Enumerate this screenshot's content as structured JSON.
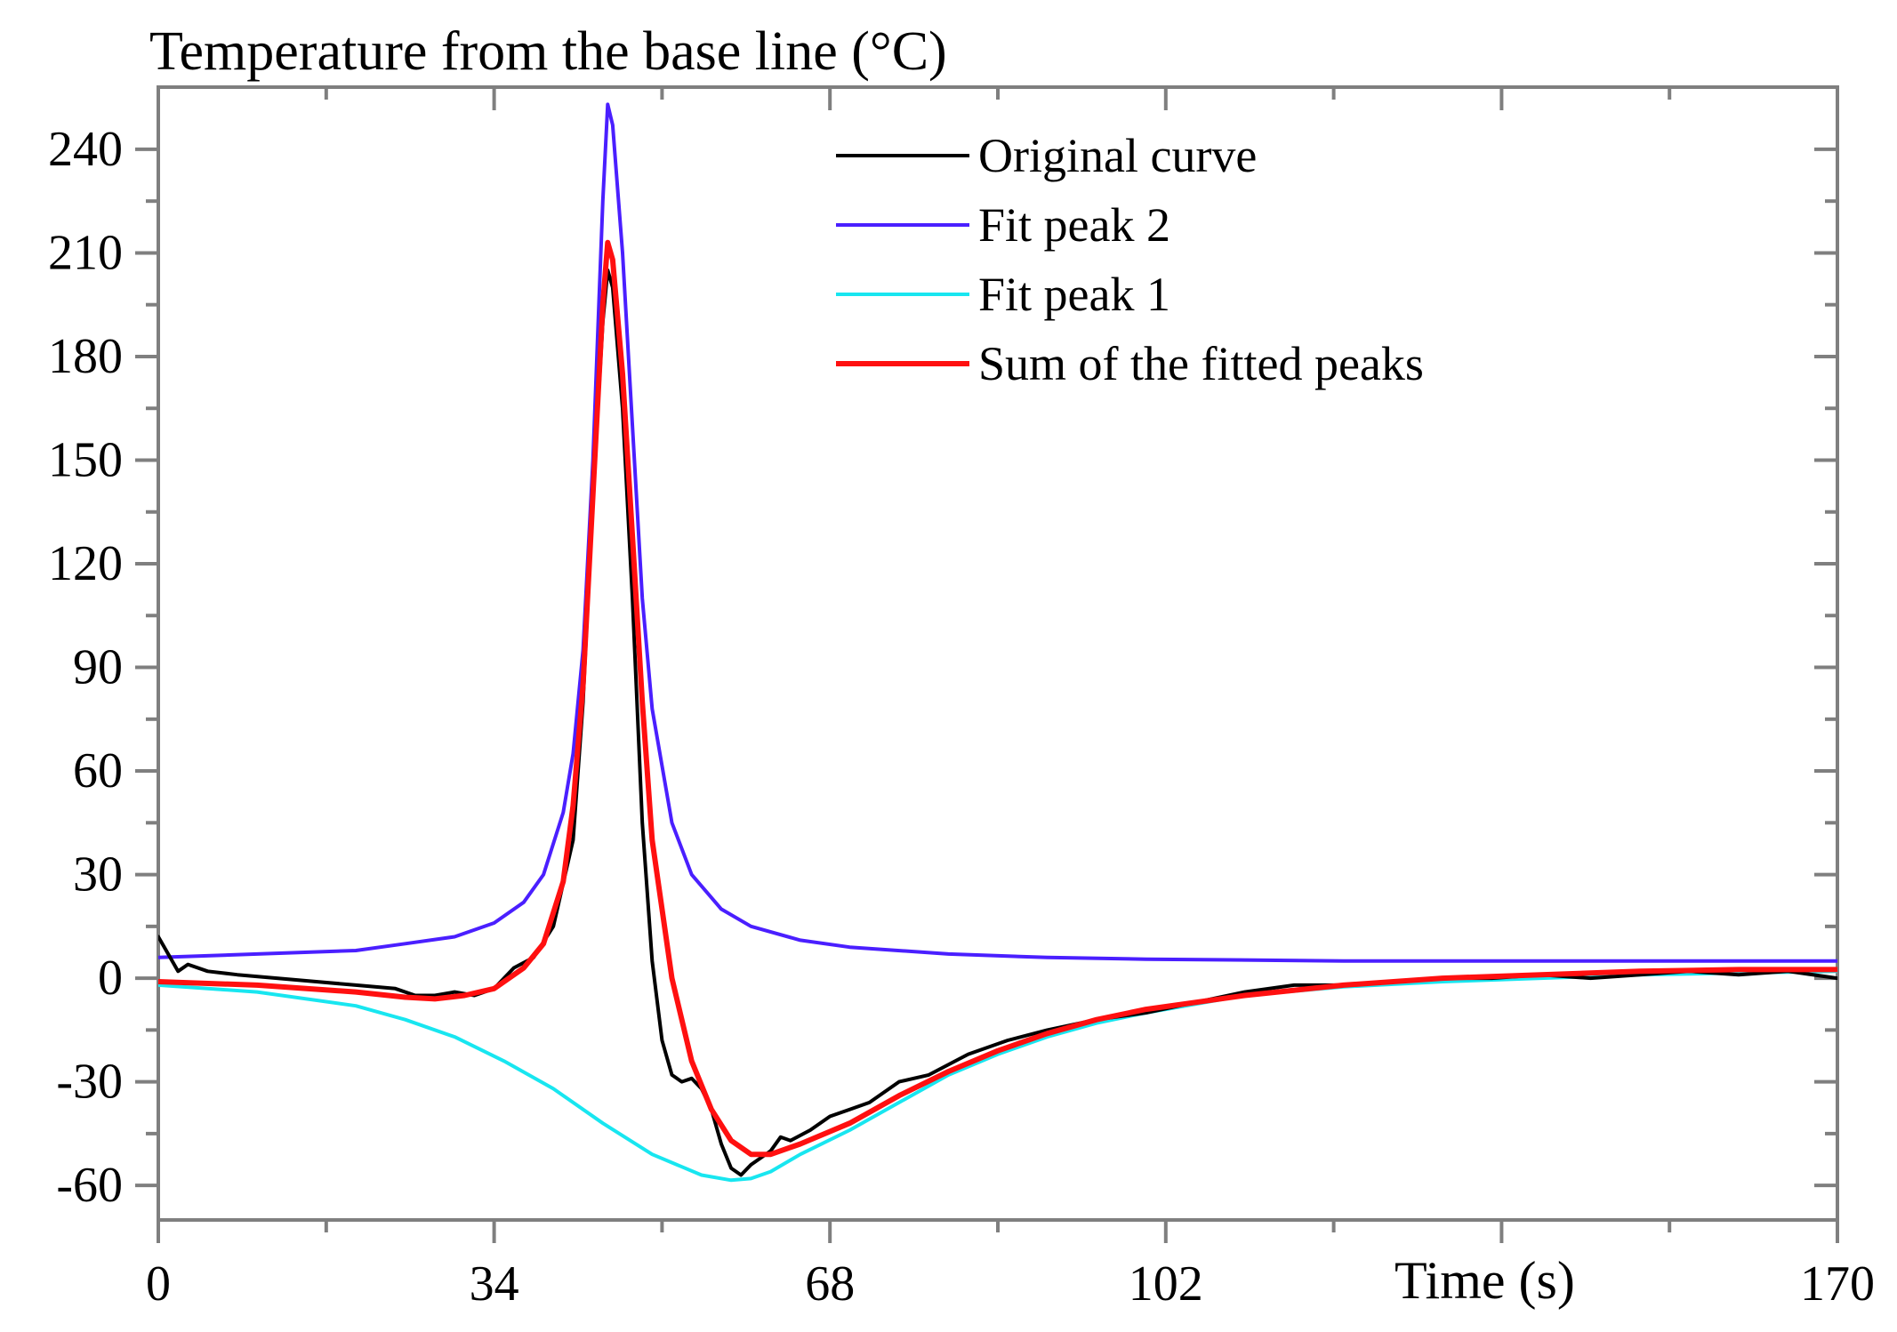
{
  "chart_data": {
    "type": "line",
    "title": "Temperature from the base line (°C)",
    "xlabel": "Time (s)",
    "ylabel": "",
    "xlim": [
      0,
      170
    ],
    "ylim": [
      -70,
      258
    ],
    "x_ticks": [
      0,
      34,
      68,
      102,
      170
    ],
    "x_tick_labels": [
      "0",
      "34",
      "68",
      "102",
      "170"
    ],
    "y_ticks": [
      240,
      210,
      180,
      150,
      120,
      90,
      60,
      30,
      0,
      -30,
      -60
    ],
    "y_tick_labels": [
      "240",
      "210",
      "180",
      "150",
      "120",
      "90",
      "60",
      "30",
      "0",
      "-30",
      "-60"
    ],
    "legend_position": "top-right",
    "series": [
      {
        "name": "Original curve",
        "color": "#000000",
        "x": [
          0,
          1,
          2,
          3,
          5,
          8,
          12,
          16,
          20,
          24,
          26,
          28,
          30,
          32,
          34,
          36,
          38,
          40,
          42,
          43,
          44,
          45,
          45.5,
          46,
          47,
          48,
          49,
          50,
          51,
          52,
          53,
          54,
          55,
          56,
          57,
          58,
          59,
          60,
          61,
          62,
          63,
          64,
          66,
          68,
          70,
          72,
          75,
          78,
          82,
          86,
          90,
          95,
          100,
          105,
          110,
          115,
          120,
          125,
          130,
          135,
          140,
          145,
          150,
          155,
          160,
          165,
          170
        ],
        "values": [
          12,
          7,
          2,
          4,
          2,
          1,
          0,
          -1,
          -2,
          -3,
          -5,
          -5,
          -4,
          -5,
          -3,
          3,
          6,
          15,
          40,
          80,
          140,
          190,
          205,
          200,
          165,
          110,
          45,
          5,
          -18,
          -28,
          -30,
          -29,
          -32,
          -38,
          -48,
          -55,
          -57,
          -54,
          -52,
          -50,
          -46,
          -47,
          -44,
          -40,
          -38,
          -36,
          -30,
          -28,
          -22,
          -18,
          -15,
          -12,
          -10,
          -7,
          -4,
          -2,
          -2,
          -1,
          0,
          0,
          1,
          0,
          1,
          2,
          1,
          2,
          0
        ]
      },
      {
        "name": "Fit peak 2",
        "color": "#4a1fff",
        "x": [
          0,
          10,
          20,
          25,
          30,
          34,
          37,
          39,
          41,
          42,
          43,
          44,
          45,
          45.5,
          46,
          47,
          48,
          49,
          50,
          52,
          54,
          57,
          60,
          65,
          70,
          80,
          90,
          100,
          120,
          140,
          170
        ],
        "values": [
          6,
          7,
          8,
          10,
          12,
          16,
          22,
          30,
          48,
          65,
          95,
          150,
          225,
          253,
          247,
          210,
          160,
          110,
          78,
          45,
          30,
          20,
          15,
          11,
          9,
          7,
          6,
          5.5,
          5,
          5,
          5
        ]
      },
      {
        "name": "Fit peak 1",
        "color": "#18e6f0",
        "x": [
          0,
          10,
          20,
          25,
          30,
          35,
          40,
          45,
          50,
          55,
          58,
          60,
          62,
          65,
          70,
          75,
          80,
          85,
          90,
          95,
          100,
          110,
          120,
          130,
          140,
          150,
          160,
          170
        ],
        "values": [
          -2,
          -4,
          -8,
          -12,
          -17,
          -24,
          -32,
          -42,
          -51,
          -57,
          -58.5,
          -58,
          -56,
          -51,
          -44,
          -36,
          -28,
          -22,
          -17,
          -13,
          -10,
          -5,
          -2.5,
          -1,
          0,
          1,
          1.5,
          2
        ]
      },
      {
        "name": "Sum of the fitted peaks",
        "color": "#ff1010",
        "x": [
          0,
          10,
          20,
          25,
          28,
          31,
          34,
          37,
          39,
          41,
          42,
          43,
          44,
          45,
          45.5,
          46,
          47,
          48,
          49,
          50,
          52,
          54,
          56,
          58,
          60,
          62,
          65,
          70,
          75,
          80,
          85,
          90,
          95,
          100,
          110,
          120,
          130,
          140,
          150,
          160,
          170
        ],
        "values": [
          -1,
          -2,
          -4,
          -5.5,
          -6,
          -5,
          -3,
          3,
          10,
          28,
          50,
          85,
          140,
          195,
          213,
          208,
          175,
          128,
          80,
          40,
          0,
          -24,
          -38,
          -47,
          -51,
          -51,
          -48,
          -42,
          -34,
          -27,
          -21,
          -16,
          -12,
          -9,
          -5,
          -2,
          0,
          1,
          2,
          2.5,
          2.5
        ]
      }
    ]
  }
}
